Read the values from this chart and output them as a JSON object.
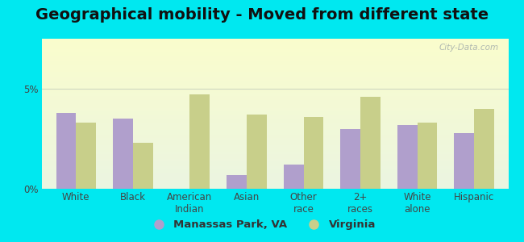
{
  "title": "Geographical mobility - Moved from different state",
  "categories": [
    "White",
    "Black",
    "American\nIndian",
    "Asian",
    "Other\nrace",
    "2+\nraces",
    "White\nalone",
    "Hispanic"
  ],
  "manassas_values": [
    3.8,
    3.5,
    0.0,
    0.7,
    1.2,
    3.0,
    3.2,
    2.8
  ],
  "virginia_values": [
    3.3,
    2.3,
    4.7,
    3.7,
    3.6,
    4.6,
    3.3,
    4.0
  ],
  "manassas_color": "#b09fcc",
  "virginia_color": "#c8cf8a",
  "background_outer": "#00e8f0",
  "ylim": [
    0,
    7.5
  ],
  "yticks": [
    0,
    5
  ],
  "ytick_labels": [
    "0%",
    "5%"
  ],
  "legend_manassas": "Manassas Park, VA",
  "legend_virginia": "Virginia",
  "bar_width": 0.35,
  "title_fontsize": 14,
  "tick_fontsize": 8.5,
  "legend_fontsize": 9.5,
  "grid_color": "#d0d8c0"
}
